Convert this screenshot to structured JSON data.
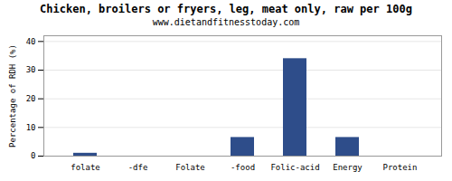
{
  "chart_data": {
    "type": "bar",
    "title": "Chicken, broilers or fryers, leg, meat only, raw per 100g",
    "subtitle": "www.dietandfitnesstoday.com",
    "ylabel": "Percentage of RDH (%)",
    "categories": [
      "folate",
      "-dfe",
      "Folate",
      "-food",
      "Folic-acid",
      "Energy",
      "Protein"
    ],
    "values": [
      1.0,
      0,
      0,
      6.5,
      34.0,
      6.5,
      0
    ],
    "color": "#2e4d8a",
    "ylim": [
      0,
      42
    ],
    "yticks": [
      0,
      10,
      20,
      30,
      40
    ],
    "grid": true
  }
}
